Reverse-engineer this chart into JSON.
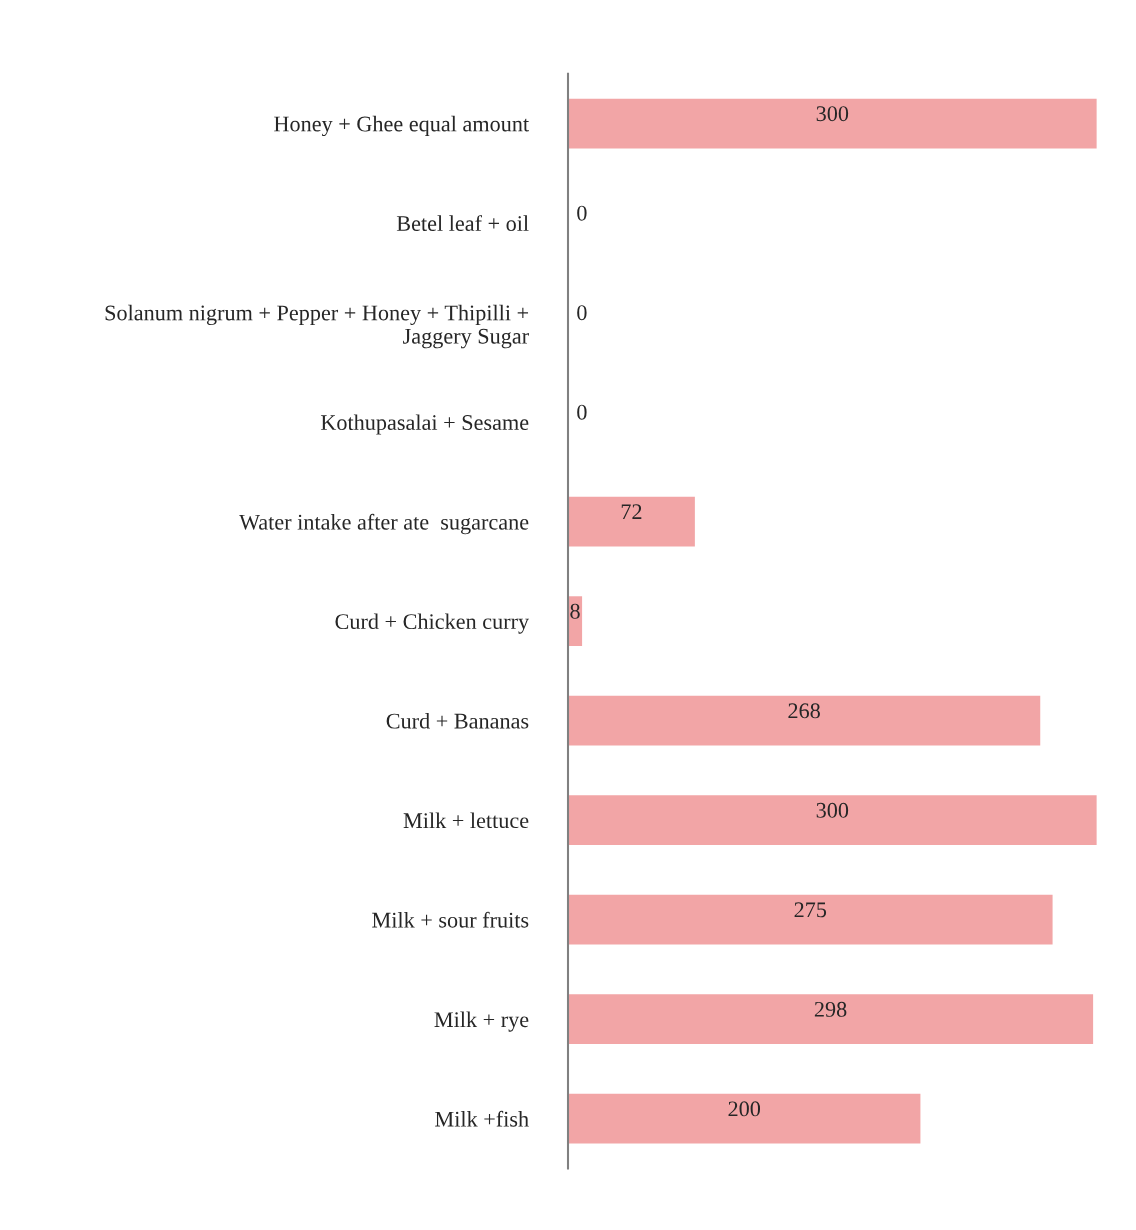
{
  "chart_data": {
    "type": "bar",
    "orientation": "horizontal",
    "data_labels": true,
    "categories": [
      "Honey + Ghee equal amount",
      "Betel leaf + oil",
      "Solanum nigrum + Pepper + Honey + Thipilli +\nJaggery Sugar",
      "Kothupasalai + Sesame",
      "Water intake after ate  sugarcane",
      "Curd + Chicken curry",
      "Curd + Bananas",
      "Milk + lettuce",
      "Milk + sour fruits",
      "Milk + rye",
      "Milk +fish"
    ],
    "values": [
      300,
      0,
      0,
      0,
      72,
      8,
      268,
      300,
      275,
      298,
      200
    ],
    "color": "#f2a5a6"
  }
}
